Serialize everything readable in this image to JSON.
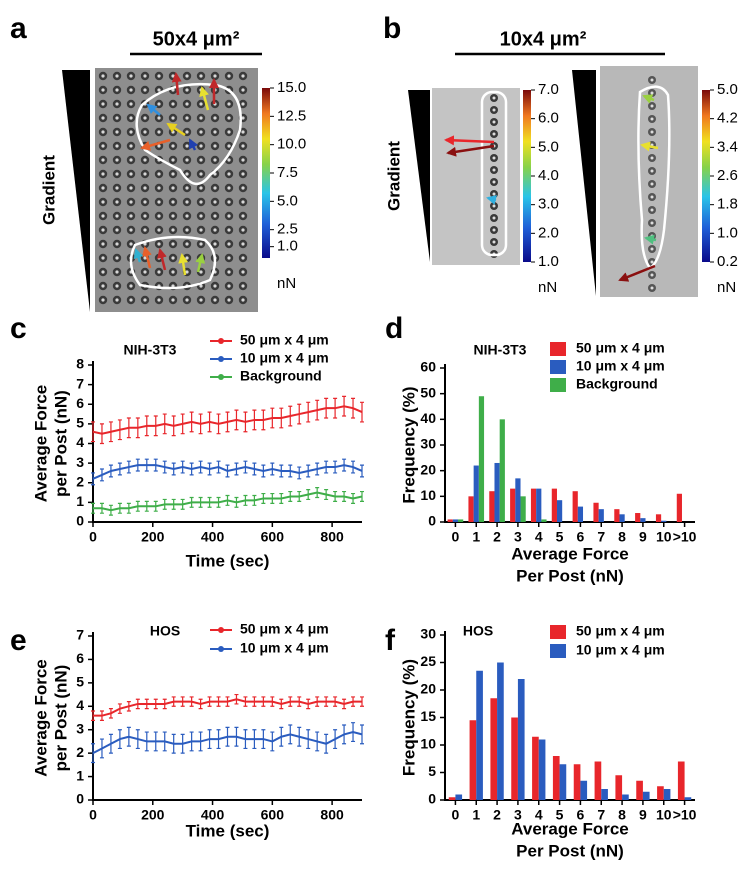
{
  "image_panels": [
    {
      "label": "a",
      "title": "50x4 μm²",
      "gradient_label": "Gradient",
      "colorbars": [
        {
          "clim": [
            0,
            15
          ],
          "unit": "nN",
          "ticks": [
            {
              "value": 15,
              "label": "15.0"
            },
            {
              "value": 12.5,
              "label": "12.5"
            },
            {
              "value": 10,
              "label": "10.0"
            },
            {
              "value": 7.5,
              "label": "7.5"
            },
            {
              "value": 5,
              "label": "5.0"
            },
            {
              "value": 2.5,
              "label": "2.5"
            },
            {
              "value": 1,
              "label": "1.0"
            }
          ]
        }
      ]
    },
    {
      "label": "b",
      "title": "10x4 μm²",
      "gradient_label": "Gradient",
      "colorbars": [
        {
          "clim": [
            1,
            7
          ],
          "unit": "nN",
          "ticks": [
            {
              "value": 7,
              "label": "7.0"
            },
            {
              "value": 6,
              "label": "6.0"
            },
            {
              "value": 5,
              "label": "5.0"
            },
            {
              "value": 4,
              "label": "4.0"
            },
            {
              "value": 3,
              "label": "3.0"
            },
            {
              "value": 2,
              "label": "2.0"
            },
            {
              "value": 1,
              "label": "1.0"
            }
          ]
        },
        {
          "clim": [
            0.2,
            5
          ],
          "unit": "nN",
          "ticks": [
            {
              "value": 5,
              "label": "5.0"
            },
            {
              "value": 4.2,
              "label": "4.2"
            },
            {
              "value": 3.4,
              "label": "3.4"
            },
            {
              "value": 2.6,
              "label": "2.6"
            },
            {
              "value": 1.8,
              "label": "1.8"
            },
            {
              "value": 1,
              "label": "1.0"
            },
            {
              "value": 0.2,
              "label": "0.2"
            }
          ]
        }
      ]
    }
  ],
  "chart_data": [
    {
      "type": "line",
      "panel": "c",
      "title": "NIH-3T3",
      "xlabel": [
        "Time (sec)"
      ],
      "ylabel": [
        "Average Force",
        "per Post (nN)"
      ],
      "x": [
        0,
        30,
        60,
        90,
        120,
        150,
        180,
        210,
        240,
        270,
        300,
        330,
        360,
        390,
        420,
        450,
        480,
        510,
        540,
        570,
        600,
        630,
        660,
        690,
        720,
        750,
        780,
        810,
        840,
        870,
        900
      ],
      "xlim": [
        0,
        900
      ],
      "xticks": [
        0,
        200,
        400,
        600,
        800
      ],
      "ylim": [
        0,
        8
      ],
      "yticks": [
        0,
        1,
        2,
        3,
        4,
        5,
        6,
        7,
        8
      ],
      "series": [
        {
          "name": "50 μm x 4 μm",
          "color": "#e8262b",
          "values": [
            4.6,
            4.5,
            4.6,
            4.7,
            4.8,
            4.8,
            4.9,
            4.9,
            5.0,
            4.9,
            5.0,
            5.1,
            5.0,
            5.1,
            5.0,
            5.1,
            5.2,
            5.1,
            5.2,
            5.2,
            5.3,
            5.3,
            5.4,
            5.5,
            5.6,
            5.7,
            5.8,
            5.8,
            5.9,
            5.8,
            5.6
          ],
          "errors": [
            0.5,
            0.5,
            0.5,
            0.5,
            0.5,
            0.5,
            0.5,
            0.5,
            0.5,
            0.5,
            0.5,
            0.5,
            0.5,
            0.5,
            0.5,
            0.5,
            0.5,
            0.5,
            0.5,
            0.5,
            0.5,
            0.5,
            0.5,
            0.5,
            0.5,
            0.5,
            0.5,
            0.5,
            0.5,
            0.5,
            0.5
          ]
        },
        {
          "name": "10 μm x 4 μm",
          "color": "#2a5cbf",
          "values": [
            2.2,
            2.4,
            2.6,
            2.7,
            2.8,
            2.9,
            2.9,
            2.9,
            2.8,
            2.7,
            2.8,
            2.7,
            2.8,
            2.7,
            2.8,
            2.6,
            2.7,
            2.8,
            2.7,
            2.6,
            2.7,
            2.6,
            2.6,
            2.5,
            2.6,
            2.7,
            2.8,
            2.8,
            2.9,
            2.8,
            2.6
          ],
          "errors": [
            0.3,
            0.3,
            0.3,
            0.3,
            0.3,
            0.3,
            0.3,
            0.3,
            0.3,
            0.3,
            0.3,
            0.3,
            0.3,
            0.3,
            0.3,
            0.3,
            0.3,
            0.3,
            0.3,
            0.3,
            0.3,
            0.3,
            0.3,
            0.3,
            0.3,
            0.3,
            0.3,
            0.3,
            0.3,
            0.3,
            0.3
          ]
        },
        {
          "name": "Background",
          "color": "#3fae49",
          "values": [
            0.7,
            0.7,
            0.6,
            0.7,
            0.7,
            0.8,
            0.8,
            0.8,
            0.9,
            0.9,
            0.9,
            1.0,
            1.0,
            1.0,
            1.0,
            1.1,
            1.0,
            1.1,
            1.1,
            1.2,
            1.2,
            1.2,
            1.3,
            1.3,
            1.4,
            1.5,
            1.4,
            1.3,
            1.3,
            1.2,
            1.3
          ],
          "errors": [
            0.25,
            0.25,
            0.25,
            0.25,
            0.25,
            0.25,
            0.25,
            0.25,
            0.25,
            0.25,
            0.25,
            0.25,
            0.25,
            0.25,
            0.25,
            0.25,
            0.25,
            0.25,
            0.25,
            0.25,
            0.25,
            0.25,
            0.25,
            0.25,
            0.25,
            0.25,
            0.25,
            0.25,
            0.25,
            0.25,
            0.25
          ]
        }
      ]
    },
    {
      "type": "bar",
      "panel": "d",
      "title": "NIH-3T3",
      "xlabel": [
        "Average Force",
        "Per Post (nN)"
      ],
      "ylabel": [
        "Frequency (%)"
      ],
      "categories": [
        "0",
        "1",
        "2",
        "3",
        "4",
        "5",
        "6",
        "7",
        "8",
        "9",
        "10",
        ">10"
      ],
      "ylim": [
        0,
        60
      ],
      "yticks": [
        0,
        10,
        20,
        30,
        40,
        50,
        60
      ],
      "series": [
        {
          "name": "50 μm x 4 μm",
          "color": "#e8262b",
          "values": [
            1,
            10,
            12,
            13,
            13,
            13,
            12,
            7.5,
            5,
            3.5,
            3,
            11
          ]
        },
        {
          "name": "10 μm x 4 μm",
          "color": "#2a5cbf",
          "values": [
            1,
            22,
            23,
            17,
            13,
            8.5,
            6,
            5,
            3,
            1.5,
            0.5,
            0
          ]
        },
        {
          "name": "Background",
          "color": "#3fae49",
          "values": [
            1,
            49,
            40,
            10,
            1,
            0,
            0,
            0,
            0,
            0,
            0,
            0
          ]
        }
      ]
    },
    {
      "type": "line",
      "panel": "e",
      "title": "HOS",
      "xlabel": [
        "Time (sec)"
      ],
      "ylabel": [
        "Average Force",
        "per Post (nN)"
      ],
      "x": [
        0,
        30,
        60,
        90,
        120,
        150,
        180,
        210,
        240,
        270,
        300,
        330,
        360,
        390,
        420,
        450,
        480,
        510,
        540,
        570,
        600,
        630,
        660,
        690,
        720,
        750,
        780,
        810,
        840,
        870,
        900
      ],
      "xlim": [
        0,
        900
      ],
      "xticks": [
        0,
        200,
        400,
        600,
        800
      ],
      "ylim": [
        0,
        7
      ],
      "yticks": [
        0,
        1,
        2,
        3,
        4,
        5,
        6,
        7
      ],
      "series": [
        {
          "name": "50 μm x 4 μm",
          "color": "#e8262b",
          "values": [
            3.6,
            3.6,
            3.7,
            3.9,
            4.0,
            4.1,
            4.1,
            4.1,
            4.1,
            4.2,
            4.2,
            4.2,
            4.1,
            4.2,
            4.2,
            4.2,
            4.3,
            4.2,
            4.2,
            4.2,
            4.2,
            4.1,
            4.2,
            4.2,
            4.1,
            4.2,
            4.2,
            4.2,
            4.1,
            4.2,
            4.2
          ],
          "errors": [
            0.2,
            0.2,
            0.2,
            0.2,
            0.2,
            0.2,
            0.2,
            0.2,
            0.2,
            0.2,
            0.2,
            0.2,
            0.2,
            0.2,
            0.2,
            0.2,
            0.2,
            0.2,
            0.2,
            0.2,
            0.2,
            0.2,
            0.2,
            0.2,
            0.2,
            0.2,
            0.2,
            0.2,
            0.2,
            0.2,
            0.2
          ]
        },
        {
          "name": "10 μm x 4 μm",
          "color": "#2a5cbf",
          "values": [
            2.0,
            2.2,
            2.4,
            2.6,
            2.7,
            2.6,
            2.5,
            2.5,
            2.5,
            2.4,
            2.4,
            2.5,
            2.5,
            2.6,
            2.6,
            2.7,
            2.7,
            2.6,
            2.6,
            2.6,
            2.5,
            2.7,
            2.8,
            2.7,
            2.6,
            2.5,
            2.4,
            2.6,
            2.8,
            2.9,
            2.8
          ],
          "errors": [
            0.4,
            0.4,
            0.4,
            0.4,
            0.4,
            0.4,
            0.4,
            0.4,
            0.4,
            0.4,
            0.4,
            0.4,
            0.4,
            0.4,
            0.4,
            0.4,
            0.4,
            0.4,
            0.4,
            0.4,
            0.4,
            0.4,
            0.4,
            0.4,
            0.4,
            0.4,
            0.4,
            0.4,
            0.4,
            0.4,
            0.4
          ]
        }
      ]
    },
    {
      "type": "bar",
      "panel": "f",
      "title": "HOS",
      "xlabel": [
        "Average Force",
        "Per Post (nN)"
      ],
      "ylabel": [
        "Frequency (%)"
      ],
      "categories": [
        "0",
        "1",
        "2",
        "3",
        "4",
        "5",
        "6",
        "7",
        "8",
        "9",
        "10",
        ">10"
      ],
      "ylim": [
        0,
        30
      ],
      "yticks": [
        0,
        5,
        10,
        15,
        20,
        25,
        30
      ],
      "series": [
        {
          "name": "50 μm x 4 μm",
          "color": "#e8262b",
          "values": [
            0.5,
            14.5,
            18.5,
            15,
            11.5,
            8,
            6.5,
            7,
            4.5,
            3.5,
            2.5,
            7
          ]
        },
        {
          "name": "10 μm x 4 μm",
          "color": "#2a5cbf",
          "values": [
            1,
            23.5,
            25,
            22,
            11,
            6.5,
            3.5,
            2,
            1,
            1.5,
            2,
            0.5
          ]
        }
      ]
    }
  ]
}
